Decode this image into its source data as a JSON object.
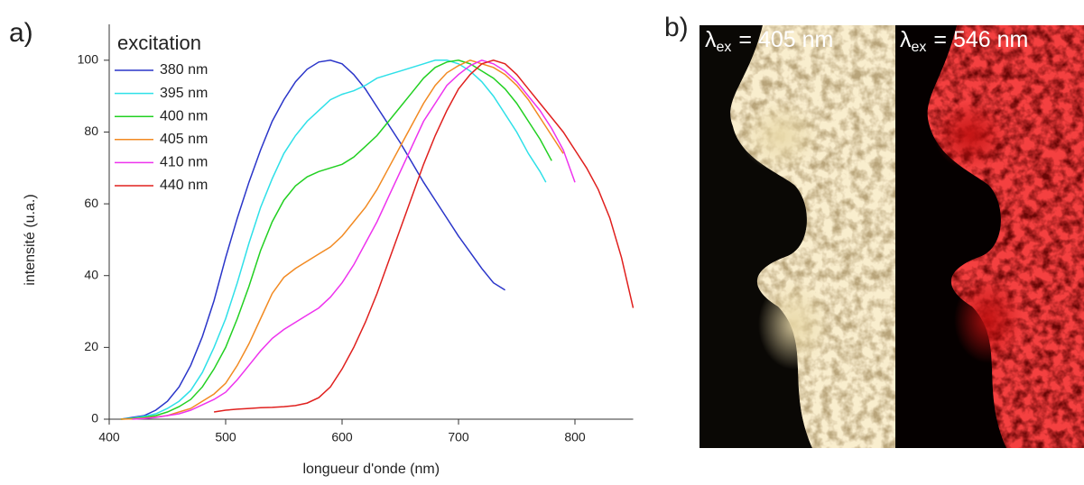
{
  "chart_data": {
    "type": "line",
    "panel_label": "a)",
    "xlabel": "longueur d'onde (nm)",
    "ylabel": "intensité (u.a.)",
    "legend_title": "excitation",
    "xlim": [
      400,
      850
    ],
    "ylim": [
      0,
      110
    ],
    "xticks": [
      400,
      500,
      600,
      700,
      800
    ],
    "yticks": [
      0,
      20,
      40,
      60,
      80,
      100
    ],
    "series": [
      {
        "name": "380 nm",
        "color": "#2a35c9",
        "x": [
          410,
          420,
          430,
          440,
          450,
          460,
          470,
          480,
          490,
          500,
          510,
          520,
          530,
          540,
          550,
          560,
          570,
          580,
          590,
          600,
          610,
          620,
          630,
          640,
          650,
          660,
          670,
          680,
          690,
          700,
          710,
          720,
          730,
          740
        ],
        "values": [
          0,
          0.5,
          1,
          2.5,
          5,
          9,
          15,
          23,
          33,
          45,
          56,
          66,
          75,
          83,
          89,
          94,
          97.5,
          99.5,
          100,
          99,
          96,
          92,
          87,
          82,
          77,
          71.5,
          66,
          61,
          56,
          51,
          46.5,
          42,
          38,
          36
        ]
      },
      {
        "name": "395 nm",
        "color": "#2ee0e8",
        "x": [
          410,
          420,
          430,
          440,
          450,
          460,
          470,
          480,
          490,
          500,
          510,
          520,
          530,
          540,
          550,
          560,
          570,
          580,
          590,
          600,
          610,
          620,
          630,
          640,
          650,
          660,
          670,
          680,
          690,
          700,
          710,
          720,
          730,
          740,
          750,
          760,
          770,
          775
        ],
        "values": [
          0,
          0.3,
          0.8,
          1.5,
          3,
          5,
          8,
          13,
          20,
          28,
          38,
          49,
          59,
          67,
          74,
          79,
          83,
          86,
          89,
          90.5,
          91.5,
          93,
          95,
          96,
          97,
          98,
          99,
          100,
          100,
          99,
          97,
          94,
          90,
          85,
          80,
          74,
          69,
          66
        ]
      },
      {
        "name": "400 nm",
        "color": "#22d022",
        "x": [
          410,
          420,
          430,
          440,
          450,
          460,
          470,
          480,
          490,
          500,
          510,
          520,
          530,
          540,
          550,
          560,
          570,
          580,
          590,
          600,
          610,
          620,
          630,
          640,
          650,
          660,
          670,
          680,
          690,
          700,
          710,
          720,
          730,
          740,
          750,
          760,
          770,
          780
        ],
        "values": [
          0,
          0.2,
          0.5,
          1,
          2,
          3.5,
          5.5,
          9,
          14,
          20,
          28,
          37,
          47,
          55,
          61,
          65,
          67.5,
          69,
          70,
          71,
          73,
          76,
          79,
          83,
          87,
          91,
          95,
          98,
          99.5,
          100,
          99,
          97,
          95,
          92,
          88,
          83,
          78,
          72
        ]
      },
      {
        "name": "405 nm",
        "color": "#f28a22",
        "x": [
          410,
          420,
          430,
          440,
          450,
          460,
          470,
          480,
          490,
          500,
          510,
          520,
          530,
          540,
          550,
          560,
          570,
          580,
          590,
          600,
          610,
          620,
          630,
          640,
          650,
          660,
          670,
          680,
          690,
          700,
          710,
          720,
          730,
          740,
          750,
          760,
          770,
          780,
          790
        ],
        "values": [
          0,
          0.1,
          0.3,
          0.6,
          1,
          2,
          3,
          5,
          7,
          10,
          15,
          21,
          28,
          35,
          39.5,
          42,
          44,
          46,
          48,
          51,
          55,
          59,
          64,
          70,
          76,
          82,
          88,
          93,
          96.5,
          98.5,
          100,
          99,
          98,
          96,
          93,
          89,
          84,
          79,
          74
        ]
      },
      {
        "name": "410 nm",
        "color": "#ee33ee",
        "x": [
          420,
          430,
          440,
          450,
          460,
          470,
          480,
          490,
          500,
          510,
          520,
          530,
          540,
          550,
          560,
          570,
          580,
          590,
          600,
          610,
          620,
          630,
          640,
          650,
          660,
          670,
          680,
          690,
          700,
          710,
          720,
          730,
          740,
          750,
          760,
          770,
          780,
          790,
          800
        ],
        "values": [
          0,
          0.2,
          0.5,
          1,
          1.5,
          2.5,
          4,
          5.5,
          7.5,
          11,
          15,
          19,
          22.5,
          25,
          27,
          29,
          31,
          34,
          38,
          43,
          49,
          55,
          62,
          69,
          76,
          83,
          88,
          93,
          96,
          98.5,
          100,
          99,
          97,
          94,
          90,
          86,
          81,
          75,
          66
        ]
      },
      {
        "name": "440 nm",
        "color": "#e0201e",
        "x": [
          490,
          500,
          510,
          520,
          530,
          540,
          550,
          560,
          570,
          580,
          590,
          600,
          610,
          620,
          630,
          640,
          650,
          660,
          670,
          680,
          690,
          700,
          710,
          720,
          730,
          740,
          750,
          760,
          770,
          780,
          790,
          800,
          810,
          820,
          830,
          840,
          850
        ],
        "values": [
          2,
          2.5,
          2.8,
          3,
          3.2,
          3.3,
          3.5,
          3.8,
          4.5,
          6,
          9,
          14,
          20,
          27,
          35,
          44,
          53,
          62,
          71,
          79,
          86,
          92,
          96,
          99,
          100,
          99,
          96,
          92,
          88,
          84,
          80,
          75,
          70,
          64,
          56,
          45,
          31
        ]
      }
    ]
  },
  "panel_b": {
    "label": "b)",
    "images": [
      {
        "symbol": "λ",
        "subscript": "ex",
        "text": "= 405 nm"
      },
      {
        "symbol": "λ",
        "subscript": "ex",
        "text": "= 546 nm"
      }
    ]
  }
}
